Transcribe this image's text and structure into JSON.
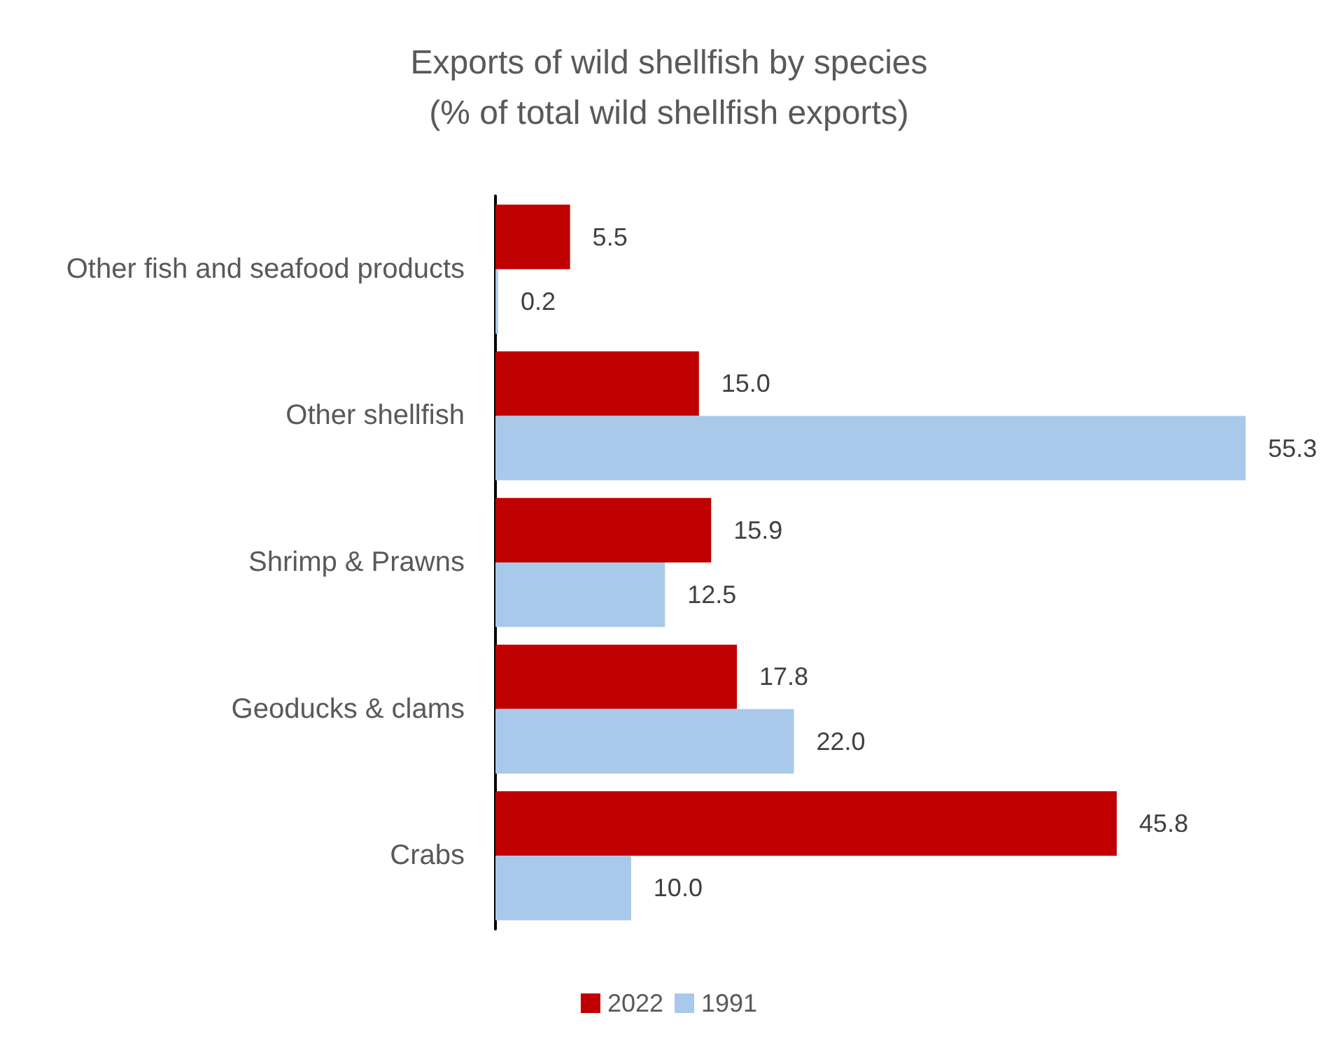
{
  "chart_data": {
    "type": "bar",
    "orientation": "horizontal",
    "title": "Exports of wild shellfish by species",
    "subtitle": "(% of total wild shellfish exports)",
    "categories": [
      "Other fish and seafood products",
      "Other shellfish",
      "Shrimp & Prawns",
      "Geoducks & clams",
      "Crabs"
    ],
    "series": [
      {
        "name": "2022",
        "color": "#c00000",
        "values": [
          5.5,
          15.0,
          15.9,
          17.8,
          45.8
        ],
        "value_labels": [
          "5.5",
          "15.0",
          "15.9",
          "17.8",
          "45.8"
        ]
      },
      {
        "name": "1991",
        "color": "#a9c9eb",
        "values": [
          0.2,
          55.3,
          12.5,
          22.0,
          10.0
        ],
        "value_labels": [
          "0.2",
          "55.3",
          "12.5",
          "22.0",
          "10.0"
        ]
      }
    ],
    "legend": "bottom"
  }
}
